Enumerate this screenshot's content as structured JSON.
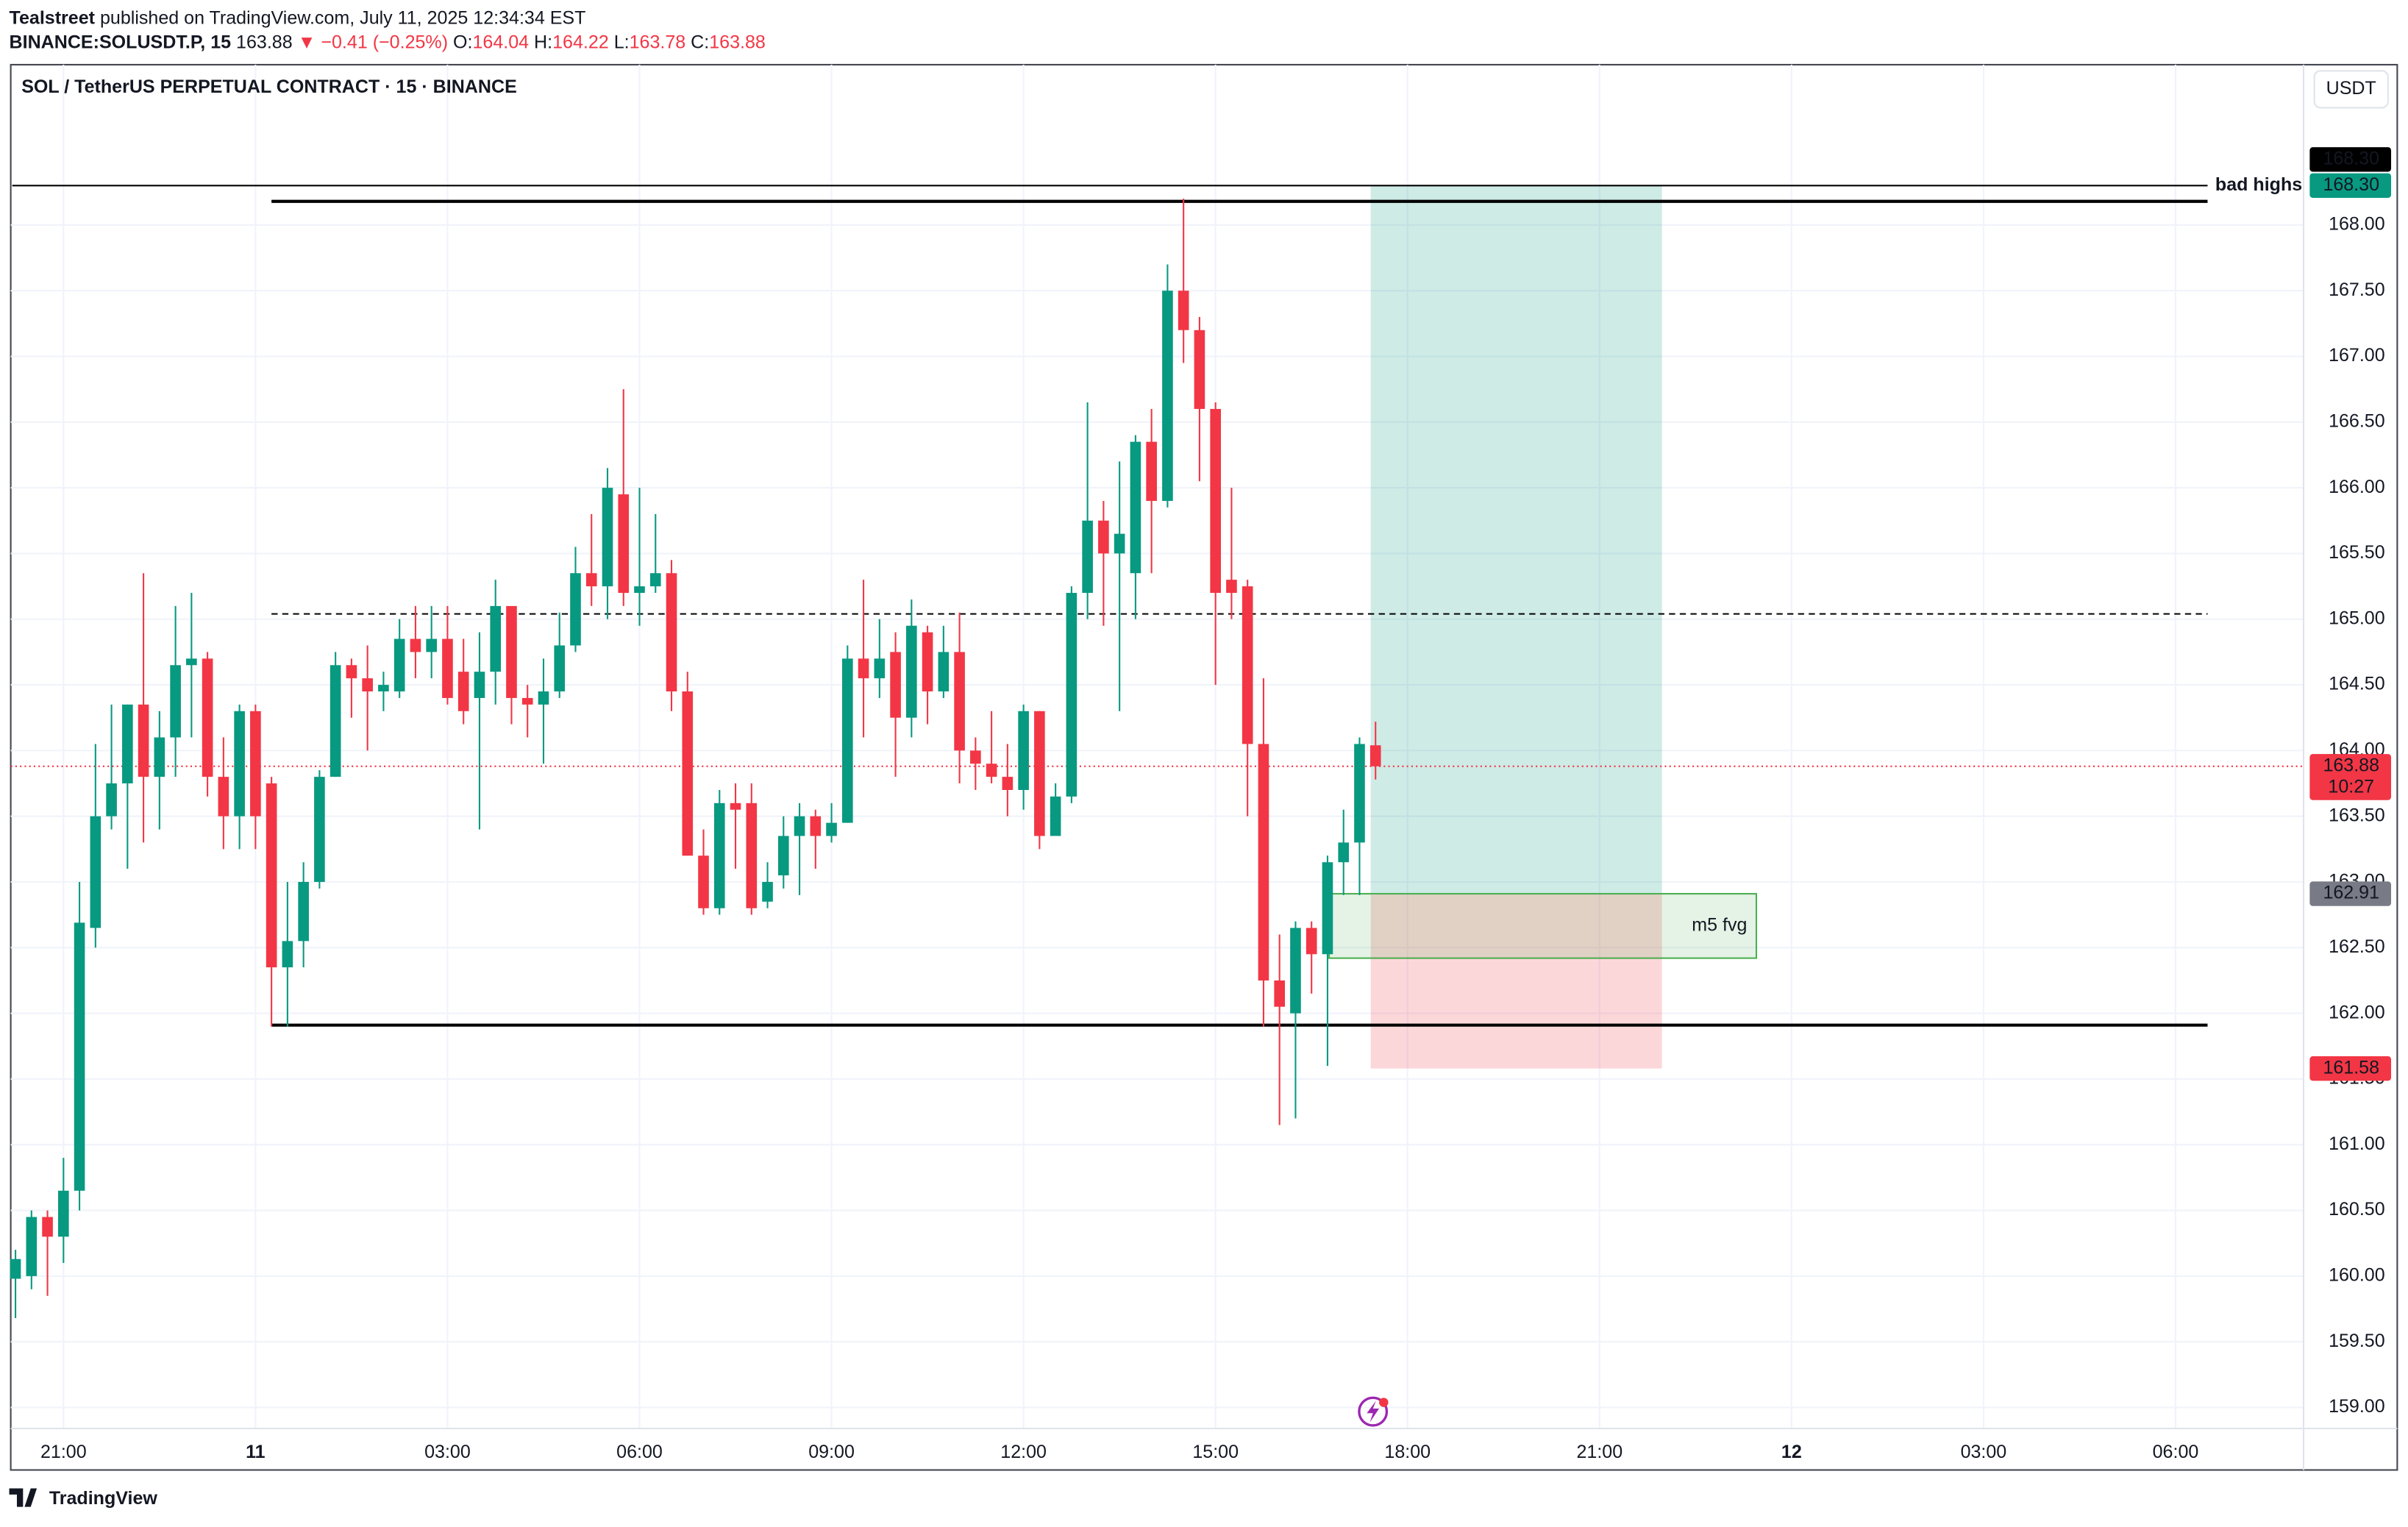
{
  "header": {
    "publisher": "Tealstreet",
    "published": "published on TradingView.com, July 11, 2025 12:34:34 EST",
    "symbol": "BINANCE:SOLUSDT.P, 15",
    "last": "163.88",
    "change": "▼ −0.41 (−0.25%)",
    "ohlc": [
      {
        "key": "O:",
        "value": "164.04"
      },
      {
        "key": "H:",
        "value": "164.22"
      },
      {
        "key": "L:",
        "value": "163.78"
      },
      {
        "key": "C:",
        "value": "163.88"
      }
    ]
  },
  "footer": {
    "brand": "TradingView"
  },
  "chart_data": {
    "type": "candlestick",
    "title": "SOL / TetherUS PERPETUAL CONTRACT · 15 · BINANCE",
    "currency": "USDT",
    "up_color": "#089981",
    "down_color": "#f23645",
    "grid": true,
    "open": [
      159.98,
      160.0,
      160.45,
      160.3,
      160.65,
      162.65,
      163.5,
      163.75,
      164.35,
      163.8,
      164.1,
      164.65,
      164.7,
      163.8,
      163.5,
      164.3,
      163.75,
      162.35,
      162.55,
      163.0,
      163.8,
      164.65,
      164.55,
      164.45,
      164.45,
      164.85,
      164.75,
      164.85,
      164.6,
      164.4,
      164.6,
      165.1,
      164.4,
      164.35,
      164.45,
      164.8,
      165.35,
      165.25,
      165.95,
      165.2,
      165.25,
      165.35,
      164.45,
      163.2,
      162.8,
      163.6,
      163.6,
      162.85,
      163.05,
      163.35,
      163.5,
      163.35,
      163.45,
      164.7,
      164.55,
      164.75,
      164.25,
      164.9,
      164.45,
      164.75,
      164.0,
      163.9,
      163.8,
      163.7,
      164.3,
      163.35,
      163.65,
      165.2,
      165.75,
      165.5,
      165.35,
      166.35,
      165.9,
      167.5,
      167.2,
      166.6,
      165.3,
      165.25,
      164.05,
      162.25,
      162.0,
      162.65,
      162.45,
      163.15,
      163.3,
      164.04
    ],
    "high": [
      160.2,
      160.5,
      160.5,
      160.9,
      163.0,
      164.05,
      164.35,
      164.35,
      165.35,
      164.3,
      165.1,
      165.2,
      164.75,
      164.1,
      164.35,
      164.35,
      163.8,
      163.0,
      163.15,
      163.85,
      164.75,
      164.7,
      164.8,
      164.6,
      165.0,
      165.1,
      165.1,
      165.1,
      164.85,
      164.9,
      165.3,
      165.05,
      164.5,
      164.7,
      165.05,
      165.55,
      165.8,
      166.15,
      166.75,
      166.0,
      165.8,
      165.45,
      164.6,
      163.4,
      163.7,
      163.75,
      163.75,
      163.15,
      163.5,
      163.6,
      163.55,
      163.6,
      164.8,
      165.3,
      165.0,
      164.9,
      165.15,
      164.95,
      164.95,
      165.05,
      164.1,
      164.3,
      164.05,
      164.35,
      164.3,
      163.75,
      165.25,
      166.65,
      165.9,
      166.2,
      166.4,
      166.6,
      167.7,
      168.2,
      167.3,
      166.65,
      166.0,
      165.3,
      164.55,
      162.6,
      162.7,
      162.7,
      163.2,
      163.55,
      164.1,
      164.22
    ],
    "low": [
      159.68,
      159.9,
      159.85,
      160.1,
      160.5,
      162.5,
      163.4,
      163.1,
      163.3,
      163.4,
      163.8,
      164.1,
      163.65,
      163.25,
      163.25,
      163.25,
      161.9,
      161.9,
      162.35,
      162.95,
      163.8,
      164.25,
      164.0,
      164.3,
      164.4,
      164.55,
      164.55,
      164.35,
      164.2,
      163.4,
      164.35,
      164.2,
      164.1,
      163.9,
      164.4,
      164.75,
      165.1,
      165.0,
      165.1,
      164.95,
      165.2,
      164.3,
      163.2,
      162.75,
      162.75,
      163.1,
      162.75,
      162.8,
      162.95,
      162.9,
      163.1,
      163.3,
      163.45,
      164.1,
      164.4,
      163.8,
      164.1,
      164.2,
      164.4,
      163.75,
      163.7,
      163.75,
      163.5,
      163.55,
      163.25,
      163.35,
      163.6,
      165.0,
      164.95,
      164.3,
      165.0,
      165.35,
      165.85,
      166.95,
      166.05,
      164.5,
      165.0,
      163.5,
      161.9,
      161.15,
      161.2,
      162.15,
      161.6,
      162.9,
      162.9,
      163.78
    ],
    "close": [
      160.13,
      160.45,
      160.3,
      160.65,
      162.69,
      163.5,
      163.75,
      164.35,
      163.8,
      164.1,
      164.65,
      164.7,
      163.8,
      163.5,
      164.3,
      163.5,
      162.35,
      162.55,
      163.0,
      163.8,
      164.65,
      164.55,
      164.45,
      164.5,
      164.85,
      164.75,
      164.85,
      164.4,
      164.3,
      164.6,
      165.1,
      164.4,
      164.35,
      164.45,
      164.8,
      165.35,
      165.25,
      166.0,
      165.2,
      165.25,
      165.35,
      164.45,
      163.2,
      162.8,
      163.6,
      163.55,
      162.8,
      163.0,
      163.35,
      163.5,
      163.35,
      163.45,
      164.7,
      164.55,
      164.7,
      164.25,
      164.95,
      164.45,
      164.75,
      164.0,
      163.9,
      163.8,
      163.7,
      164.3,
      163.35,
      163.65,
      165.2,
      165.75,
      165.5,
      165.65,
      166.35,
      165.9,
      167.5,
      167.2,
      166.6,
      165.2,
      165.2,
      164.05,
      162.25,
      162.05,
      162.65,
      162.45,
      163.15,
      163.3,
      164.05,
      163.88
    ],
    "xlim": [
      -0.2,
      143
    ],
    "xticks": [
      {
        "value": 3,
        "label": "21:00"
      },
      {
        "value": 15,
        "label": "11"
      },
      {
        "value": 27,
        "label": "03:00"
      },
      {
        "value": 39,
        "label": "06:00"
      },
      {
        "value": 51,
        "label": "09:00"
      },
      {
        "value": 63,
        "label": "12:00"
      },
      {
        "value": 75,
        "label": "15:00"
      },
      {
        "value": 87,
        "label": "18:00"
      },
      {
        "value": 99,
        "label": "21:00"
      },
      {
        "value": 111,
        "label": "12"
      },
      {
        "value": 123,
        "label": "03:00"
      },
      {
        "value": 135,
        "label": "06:00"
      }
    ],
    "ylim": [
      158.84,
      169.22
    ],
    "yticks": [
      {
        "value": 159,
        "label": "159.00"
      },
      {
        "value": 159.5,
        "label": "159.50"
      },
      {
        "value": 160,
        "label": "160.00"
      },
      {
        "value": 160.5,
        "label": "160.50"
      },
      {
        "value": 161,
        "label": "161.00"
      },
      {
        "value": 161.5,
        "label": "161.50"
      },
      {
        "value": 162,
        "label": "162.00"
      },
      {
        "value": 162.5,
        "label": "162.50"
      },
      {
        "value": 163,
        "label": "163.00"
      },
      {
        "value": 163.5,
        "label": "163.50"
      },
      {
        "value": 164,
        "label": "164.00"
      },
      {
        "value": 164.5,
        "label": "164.50"
      },
      {
        "value": 165,
        "label": "165.00"
      },
      {
        "value": 165.5,
        "label": "165.50"
      },
      {
        "value": 166,
        "label": "166.00"
      },
      {
        "value": 166.5,
        "label": "166.50"
      },
      {
        "value": 167,
        "label": "167.00"
      },
      {
        "value": 167.5,
        "label": "167.50"
      },
      {
        "value": 168,
        "label": "168.00"
      }
    ],
    "lines": [
      {
        "value": 168.18,
        "x": [
          16,
          137
        ],
        "style": "solid"
      },
      {
        "value": 165.04,
        "x": [
          16,
          137
        ],
        "style": "dashed"
      },
      {
        "value": 161.91,
        "x": [
          16,
          137
        ],
        "style": "solid"
      }
    ],
    "bad_highs": {
      "label": "bad highs",
      "value": 168.3,
      "x": [
        -0.2,
        137
      ]
    },
    "current_price": 163.88,
    "position": {
      "target": 168.3,
      "entry": 162.91,
      "stop": 161.58,
      "x": [
        84.7,
        102.9
      ]
    },
    "fvg": {
      "label": "m5 fvg",
      "low": 162.42,
      "high": 162.91,
      "x": [
        82.1,
        108.8
      ]
    },
    "price_labels": [
      {
        "value": 168.3,
        "label": "168.30",
        "color": "#089981"
      },
      {
        "value": 168.3,
        "label": "168.30",
        "color": "#000000"
      },
      {
        "value": 163.88,
        "label": "163.88",
        "sub": "10:27",
        "color": "#f23645"
      },
      {
        "value": 162.91,
        "label": "162.91",
        "color": "#787b86"
      },
      {
        "value": 161.58,
        "label": "161.58",
        "color": "#f23645"
      }
    ]
  }
}
